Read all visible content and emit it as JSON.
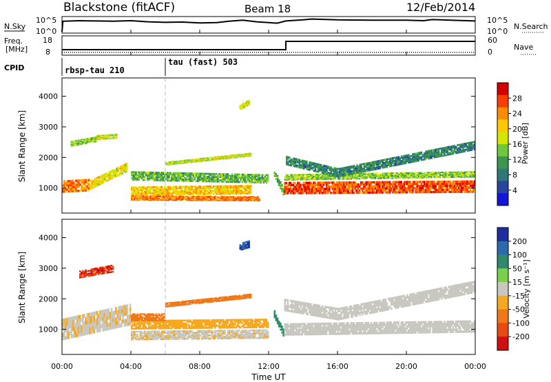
{
  "header": {
    "radar": "Blackstone (fitACF)",
    "beam": "Beam 18",
    "date": "12/Feb/2014"
  },
  "panels": {
    "nsky": {
      "left_label": "N.Sky",
      "left_ticks": [
        "10^5",
        "10^0"
      ],
      "right_label": "N.Search",
      "right_ticks": [
        "10^5",
        "10^0"
      ]
    },
    "freq": {
      "left_label_1": "Freq.",
      "left_label_2": "[MHz]",
      "left_ticks": [
        "18",
        "8"
      ],
      "right_label": "Nave",
      "right_ticks": [
        "60",
        "0"
      ]
    },
    "cpid": {
      "label": "CPID",
      "modes": [
        "rbsp-tau 210",
        "tau (fast) 503"
      ]
    }
  },
  "power_colorbar": {
    "label": "Power [dB]",
    "ticks": [
      "28",
      "24",
      "20",
      "16",
      "12",
      "8",
      "4"
    ],
    "colors": [
      "#d40000",
      "#ff3c00",
      "#ff8c00",
      "#ffc800",
      "#d2e600",
      "#6ec83c",
      "#3c9650",
      "#2d7878",
      "#2846a0",
      "#1414dc"
    ]
  },
  "velocity_colorbar": {
    "label": "Velocity [m s⁻¹]",
    "ticks": [
      "200",
      "100",
      "50",
      "15",
      "-15",
      "-50",
      "-100",
      "-200"
    ],
    "colors": [
      "#1e2ea0",
      "#2c6ab0",
      "#2e8a6a",
      "#7ccf4a",
      "#c8c8c0",
      "#f6a820",
      "#f07818",
      "#e84a10",
      "#d01010"
    ]
  },
  "chart_data": {
    "type": "heatmap",
    "x_axis": {
      "label": "Time UT",
      "ticks": [
        "00:00",
        "04:00",
        "08:00",
        "12:00",
        "16:00",
        "20:00",
        "00:00"
      ],
      "range_hours": [
        0,
        24
      ]
    },
    "y_axis": {
      "label": "Slant Range [km]",
      "ticks": [
        "1000",
        "2000",
        "3000",
        "4000"
      ],
      "range_km": [
        180,
        4600
      ]
    },
    "cpid_changes": [
      {
        "t": 0.0,
        "mode": "rbsp-tau 210"
      },
      {
        "t": 6.0,
        "mode": "tau (fast) 503"
      }
    ],
    "frequency_mhz": [
      {
        "t0": 0.0,
        "t1": 13.0,
        "value": 10.5
      },
      {
        "t0": 13.0,
        "t1": 24.0,
        "value": 15.5
      }
    ],
    "nsky_log10": [
      [
        0.0,
        0.0
      ],
      [
        0.05,
        3.8
      ],
      [
        1.0,
        4.0
      ],
      [
        2.0,
        3.9
      ],
      [
        3.0,
        3.8
      ],
      [
        4.0,
        4.0
      ],
      [
        5.0,
        3.6
      ],
      [
        6.0,
        3.4
      ],
      [
        7.0,
        3.5
      ],
      [
        8.0,
        3.2
      ],
      [
        9.0,
        3.3
      ],
      [
        9.7,
        3.8
      ],
      [
        10.5,
        4.2
      ],
      [
        11.3,
        3.6
      ],
      [
        12.0,
        3.3
      ],
      [
        12.5,
        3.1
      ],
      [
        13.0,
        3.9
      ],
      [
        14.0,
        4.3
      ],
      [
        14.5,
        4.6
      ],
      [
        16.0,
        4.3
      ],
      [
        18.0,
        4.2
      ],
      [
        20.0,
        4.2
      ],
      [
        21.0,
        4.0
      ],
      [
        21.5,
        4.4
      ],
      [
        22.0,
        4.3
      ],
      [
        23.0,
        4.1
      ],
      [
        24.0,
        3.9
      ]
    ],
    "power_echoes": [
      {
        "t0": 0.0,
        "t1": 1.6,
        "r_start": 1050,
        "r_end": 1100,
        "width": 400,
        "power_db": 24
      },
      {
        "t0": 1.6,
        "t1": 3.8,
        "r_start": 1100,
        "r_end": 1700,
        "width": 300,
        "power_db": 18
      },
      {
        "t0": 4.0,
        "t1": 11.0,
        "r_start": 900,
        "r_end": 950,
        "width": 300,
        "power_db": 20
      },
      {
        "t0": 4.0,
        "t1": 12.0,
        "r_start": 1400,
        "r_end": 1300,
        "width": 300,
        "power_db": 12
      },
      {
        "t0": 6.0,
        "t1": 11.0,
        "r_start": 1800,
        "r_end": 2100,
        "width": 120,
        "power_db": 16
      },
      {
        "t0": 4.0,
        "t1": 11.5,
        "r_start": 680,
        "r_end": 650,
        "width": 160,
        "power_db": 24
      },
      {
        "t0": 0.5,
        "t1": 2.0,
        "r_start": 2450,
        "r_end": 2600,
        "width": 180,
        "power_db": 14
      },
      {
        "t0": 2.0,
        "t1": 3.2,
        "r_start": 2650,
        "r_end": 2700,
        "width": 160,
        "power_db": 16
      },
      {
        "t0": 10.3,
        "t1": 10.9,
        "r_start": 3650,
        "r_end": 3800,
        "width": 200,
        "power_db": 16
      },
      {
        "t0": 12.3,
        "t1": 12.9,
        "r_start": 1500,
        "r_end": 800,
        "width": 250,
        "power_db": 12
      },
      {
        "t0": 12.9,
        "t1": 24.0,
        "r_start": 1000,
        "r_end": 1050,
        "width": 400,
        "power_db": 26
      },
      {
        "t0": 12.9,
        "t1": 24.0,
        "r_start": 1350,
        "r_end": 1450,
        "width": 200,
        "power_db": 14
      },
      {
        "t0": 13.0,
        "t1": 16.0,
        "r_start": 1900,
        "r_end": 1500,
        "width": 300,
        "power_db": 8
      },
      {
        "t0": 16.0,
        "t1": 24.0,
        "r_start": 1500,
        "r_end": 2400,
        "width": 300,
        "power_db": 8
      }
    ],
    "velocity_echoes": [
      {
        "t0": 0.0,
        "t1": 4.0,
        "r_start": 1000,
        "r_end": 1500,
        "width": 700,
        "velocity": -10
      },
      {
        "t0": 4.0,
        "t1": 12.0,
        "r_start": 800,
        "r_end": 850,
        "width": 300,
        "velocity": -10
      },
      {
        "t0": 4.0,
        "t1": 12.0,
        "r_start": 1150,
        "r_end": 1200,
        "width": 300,
        "velocity": -40
      },
      {
        "t0": 4.0,
        "t1": 6.0,
        "r_start": 1400,
        "r_end": 1400,
        "width": 250,
        "velocity": -60
      },
      {
        "t0": 6.0,
        "t1": 11.0,
        "r_start": 1800,
        "r_end": 2100,
        "width": 150,
        "velocity": -70
      },
      {
        "t0": 1.0,
        "t1": 3.0,
        "r_start": 2800,
        "r_end": 3000,
        "width": 250,
        "velocity": -150
      },
      {
        "t0": 10.3,
        "t1": 10.9,
        "r_start": 3700,
        "r_end": 3800,
        "width": 250,
        "velocity": 150
      },
      {
        "t0": 12.3,
        "t1": 12.9,
        "r_start": 1500,
        "r_end": 800,
        "width": 250,
        "velocity": 40
      },
      {
        "t0": 12.9,
        "t1": 24.0,
        "r_start": 1000,
        "r_end": 1100,
        "width": 400,
        "velocity": -5
      },
      {
        "t0": 12.9,
        "t1": 16.0,
        "r_start": 1800,
        "r_end": 1500,
        "width": 400,
        "velocity": -5
      },
      {
        "t0": 16.0,
        "t1": 24.0,
        "r_start": 1500,
        "r_end": 2400,
        "width": 400,
        "velocity": -5
      }
    ]
  }
}
